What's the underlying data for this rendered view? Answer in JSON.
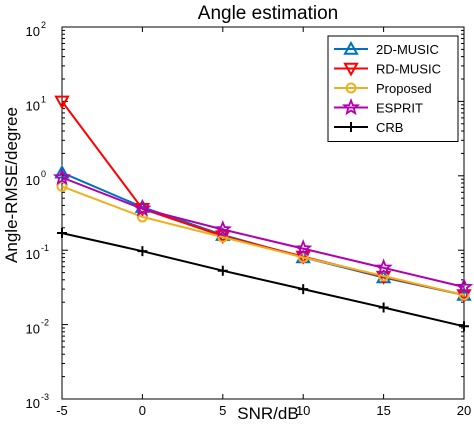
{
  "chart_data": {
    "type": "line",
    "title": "Angle estimation",
    "xlabel": "SNR/dB",
    "ylabel": "Angle-RMSE/degree",
    "x": [
      -5,
      0,
      5,
      10,
      15,
      20
    ],
    "xlim": [
      -5,
      20
    ],
    "ylim": [
      0.001,
      100
    ],
    "yscale": "log",
    "x_ticks": [
      "-5",
      "0",
      "5",
      "10",
      "15",
      "20"
    ],
    "y_ticks": [
      {
        "base": "10",
        "exp": "-3"
      },
      {
        "base": "10",
        "exp": "-2"
      },
      {
        "base": "10",
        "exp": "-1"
      },
      {
        "base": "10",
        "exp": "0"
      },
      {
        "base": "10",
        "exp": "1"
      },
      {
        "base": "10",
        "exp": "2"
      }
    ],
    "grid": false,
    "legend_position": "top-right",
    "series": [
      {
        "name": "2D-MUSIC",
        "color": "#0072BD",
        "marker": "triangle-up",
        "values": [
          1.1,
          0.38,
          0.16,
          0.08,
          0.043,
          0.025
        ]
      },
      {
        "name": "RD-MUSIC",
        "color": "#FF0000",
        "marker": "triangle-down",
        "values": [
          10,
          0.36,
          0.155,
          0.082,
          0.044,
          0.025
        ]
      },
      {
        "name": "Proposed",
        "color": "#EDB120",
        "marker": "circle",
        "values": [
          0.72,
          0.28,
          0.15,
          0.08,
          0.045,
          0.025
        ]
      },
      {
        "name": "ESPRIT",
        "color": "#B000B0",
        "marker": "star",
        "values": [
          0.95,
          0.36,
          0.19,
          0.105,
          0.058,
          0.032
        ]
      },
      {
        "name": "CRB",
        "color": "#000000",
        "marker": "plus",
        "values": [
          0.17,
          0.097,
          0.053,
          0.03,
          0.017,
          0.0095
        ]
      }
    ]
  }
}
